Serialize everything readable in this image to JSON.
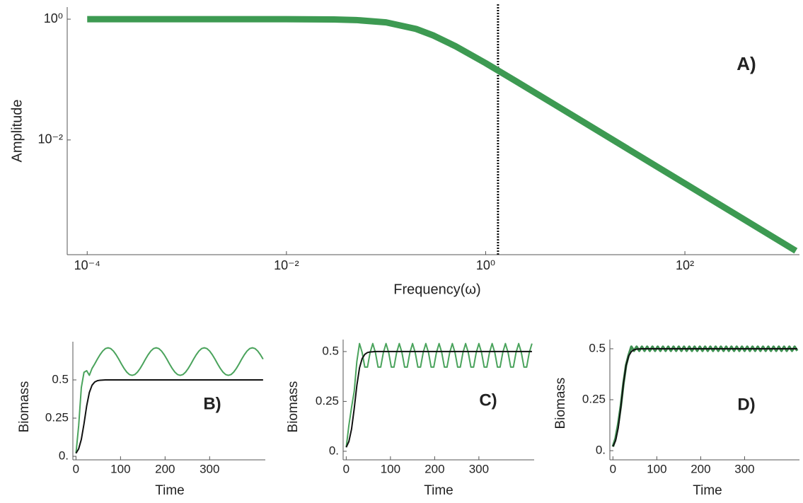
{
  "chart_data": [
    {
      "type": "line",
      "xlabel": "Frequency(ω)",
      "ylabel": "Amplitude",
      "annotation": "A)",
      "log_x": true,
      "log_y": true,
      "grid": false,
      "xlim": [
        6.3e-05,
        1413
      ],
      "ylim": [
        0.000126,
        1.585
      ],
      "xticks": [
        {
          "value": 0.0001,
          "label": "10⁻⁴"
        },
        {
          "value": 0.01,
          "label": "10⁻²"
        },
        {
          "value": 1,
          "label": "10⁰"
        },
        {
          "value": 100,
          "label": "10²"
        }
      ],
      "yticks": [
        {
          "value": 1,
          "label": "10⁰"
        },
        {
          "value": 0.01,
          "label": "10⁻²"
        }
      ],
      "vline": 1.33,
      "x": [
        0.0001,
        0.001,
        0.01,
        0.03,
        0.05,
        0.1,
        0.2,
        0.3,
        0.5,
        1,
        2,
        5,
        10,
        100,
        1300
      ],
      "series": [
        {
          "color": "#3d9a52",
          "values": [
            1,
            1,
            0.9986,
            0.988,
            0.967,
            0.885,
            0.689,
            0.535,
            0.355,
            0.187,
            0.0946,
            0.038,
            0.019,
            0.0019,
            0.000146
          ]
        }
      ]
    },
    {
      "type": "line",
      "xlabel": "Time",
      "ylabel": "Biomass",
      "annotation": "B)",
      "grid": false,
      "xlim": [
        -7,
        425
      ],
      "ylim": [
        -0.023,
        0.75
      ],
      "xticks": [
        0,
        100,
        200,
        300
      ],
      "yticks": [
        {
          "value": 0,
          "label": "0."
        },
        0.25,
        0.5
      ],
      "x": [
        0,
        6,
        12,
        18,
        24,
        30,
        36,
        42,
        48,
        54,
        60,
        66,
        72,
        78,
        84,
        90,
        96,
        102,
        108,
        114,
        120,
        126,
        132,
        138,
        144,
        150,
        156,
        162,
        168,
        174,
        180,
        186,
        192,
        198,
        204,
        210,
        216,
        222,
        228,
        234,
        240,
        246,
        252,
        258,
        264,
        270,
        276,
        282,
        288,
        294,
        300,
        306,
        312,
        318,
        324,
        330,
        336,
        342,
        348,
        354,
        360,
        366,
        372,
        378,
        384,
        390,
        396,
        402,
        408,
        414,
        420
      ],
      "series": [
        {
          "color": "#4aa35c",
          "values": [
            0.02,
            0.2,
            0.45,
            0.55,
            0.56,
            0.53,
            0.575,
            0.604,
            0.636,
            0.665,
            0.689,
            0.705,
            0.71,
            0.705,
            0.689,
            0.665,
            0.636,
            0.604,
            0.575,
            0.551,
            0.535,
            0.53,
            0.535,
            0.551,
            0.575,
            0.604,
            0.636,
            0.665,
            0.689,
            0.705,
            0.71,
            0.705,
            0.689,
            0.665,
            0.636,
            0.604,
            0.575,
            0.551,
            0.535,
            0.53,
            0.535,
            0.551,
            0.575,
            0.604,
            0.636,
            0.665,
            0.689,
            0.705,
            0.71,
            0.705,
            0.689,
            0.665,
            0.636,
            0.604,
            0.575,
            0.551,
            0.535,
            0.53,
            0.535,
            0.551,
            0.575,
            0.604,
            0.636,
            0.665,
            0.689,
            0.705,
            0.71,
            0.705,
            0.689,
            0.665,
            0.636
          ]
        },
        {
          "color": "#111111",
          "values": [
            0.02,
            0.049,
            0.111,
            0.213,
            0.33,
            0.418,
            0.465,
            0.486,
            0.495,
            0.498,
            0.499,
            0.5,
            0.5,
            0.5,
            0.5,
            0.5,
            0.5,
            0.5,
            0.5,
            0.5,
            0.5,
            0.5,
            0.5,
            0.5,
            0.5,
            0.5,
            0.5,
            0.5,
            0.5,
            0.5,
            0.5,
            0.5,
            0.5,
            0.5,
            0.5,
            0.5,
            0.5,
            0.5,
            0.5,
            0.5,
            0.5,
            0.5,
            0.5,
            0.5,
            0.5,
            0.5,
            0.5,
            0.5,
            0.5,
            0.5,
            0.5,
            0.5,
            0.5,
            0.5,
            0.5,
            0.5,
            0.5,
            0.5,
            0.5,
            0.5,
            0.5,
            0.5,
            0.5,
            0.5,
            0.5,
            0.5,
            0.5,
            0.5,
            0.5,
            0.5,
            0.5
          ]
        }
      ]
    },
    {
      "type": "line",
      "xlabel": "Time",
      "ylabel": "Biomass",
      "annotation": "C)",
      "grid": false,
      "xlim": [
        -7,
        425
      ],
      "ylim": [
        -0.043,
        0.56
      ],
      "xticks": [
        0,
        100,
        200,
        300
      ],
      "yticks": [
        {
          "value": 0,
          "label": "0."
        },
        0.25,
        0.5
      ],
      "x": [
        0,
        6,
        12,
        18,
        24,
        30,
        36,
        42,
        48,
        54,
        60,
        66,
        72,
        78,
        84,
        90,
        96,
        102,
        108,
        114,
        120,
        126,
        132,
        138,
        144,
        150,
        156,
        162,
        168,
        174,
        180,
        186,
        192,
        198,
        204,
        210,
        216,
        222,
        228,
        234,
        240,
        246,
        252,
        258,
        264,
        270,
        276,
        282,
        288,
        294,
        300,
        306,
        312,
        318,
        324,
        330,
        336,
        342,
        348,
        354,
        360,
        366,
        372,
        378,
        384,
        390,
        396,
        402,
        408,
        414,
        420
      ],
      "series": [
        {
          "color": "#4aa35c",
          "values": [
            0.02,
            0.13,
            0.22,
            0.3,
            0.45,
            0.54,
            0.495,
            0.422,
            0.422,
            0.495,
            0.54,
            0.495,
            0.422,
            0.422,
            0.495,
            0.54,
            0.495,
            0.422,
            0.422,
            0.495,
            0.54,
            0.495,
            0.422,
            0.422,
            0.495,
            0.54,
            0.495,
            0.422,
            0.422,
            0.495,
            0.54,
            0.495,
            0.422,
            0.422,
            0.495,
            0.54,
            0.495,
            0.422,
            0.422,
            0.495,
            0.54,
            0.495,
            0.422,
            0.422,
            0.495,
            0.54,
            0.495,
            0.422,
            0.422,
            0.495,
            0.54,
            0.495,
            0.422,
            0.422,
            0.495,
            0.54,
            0.495,
            0.422,
            0.422,
            0.495,
            0.54,
            0.495,
            0.422,
            0.422,
            0.495,
            0.54,
            0.495,
            0.422,
            0.422,
            0.495,
            0.54
          ]
        },
        {
          "color": "#111111",
          "values": [
            0.02,
            0.049,
            0.111,
            0.213,
            0.33,
            0.418,
            0.465,
            0.486,
            0.495,
            0.498,
            0.499,
            0.5,
            0.5,
            0.5,
            0.5,
            0.5,
            0.5,
            0.5,
            0.5,
            0.5,
            0.5,
            0.5,
            0.5,
            0.5,
            0.5,
            0.5,
            0.5,
            0.5,
            0.5,
            0.5,
            0.5,
            0.5,
            0.5,
            0.5,
            0.5,
            0.5,
            0.5,
            0.5,
            0.5,
            0.5,
            0.5,
            0.5,
            0.5,
            0.5,
            0.5,
            0.5,
            0.5,
            0.5,
            0.5,
            0.5,
            0.5,
            0.5,
            0.5,
            0.5,
            0.5,
            0.5,
            0.5,
            0.5,
            0.5,
            0.5,
            0.5,
            0.5,
            0.5,
            0.5,
            0.5,
            0.5,
            0.5,
            0.5,
            0.5,
            0.5,
            0.5
          ]
        }
      ]
    },
    {
      "type": "line",
      "xlabel": "Time",
      "ylabel": "Biomass",
      "annotation": "D)",
      "grid": false,
      "xlim": [
        -7,
        425
      ],
      "ylim": [
        -0.045,
        0.545
      ],
      "xticks": [
        0,
        100,
        200,
        300
      ],
      "yticks": [
        {
          "value": 0,
          "label": "0."
        },
        0.25,
        0.5
      ],
      "x": [
        0,
        6,
        12,
        18,
        24,
        30,
        36,
        42,
        48,
        54,
        60,
        66,
        72,
        78,
        84,
        90,
        96,
        102,
        108,
        114,
        120,
        126,
        132,
        138,
        144,
        150,
        156,
        162,
        168,
        174,
        180,
        186,
        192,
        198,
        204,
        210,
        216,
        222,
        228,
        234,
        240,
        246,
        252,
        258,
        264,
        270,
        276,
        282,
        288,
        294,
        300,
        306,
        312,
        318,
        324,
        330,
        336,
        342,
        348,
        354,
        360,
        366,
        372,
        378,
        384,
        390,
        396,
        402,
        408,
        414,
        420
      ],
      "series": [
        {
          "color": "#3f8f52",
          "values": [
            0.02,
            0.06,
            0.13,
            0.22,
            0.33,
            0.42,
            0.47,
            0.51,
            0.49,
            0.51,
            0.49,
            0.51,
            0.49,
            0.51,
            0.49,
            0.51,
            0.49,
            0.51,
            0.49,
            0.51,
            0.49,
            0.51,
            0.49,
            0.51,
            0.49,
            0.51,
            0.49,
            0.51,
            0.49,
            0.51,
            0.49,
            0.51,
            0.49,
            0.51,
            0.49,
            0.51,
            0.49,
            0.51,
            0.49,
            0.51,
            0.49,
            0.51,
            0.49,
            0.51,
            0.49,
            0.51,
            0.49,
            0.51,
            0.49,
            0.51,
            0.49,
            0.51,
            0.49,
            0.51,
            0.49,
            0.51,
            0.49,
            0.51,
            0.49,
            0.51,
            0.49,
            0.51,
            0.49,
            0.51,
            0.49,
            0.51,
            0.49,
            0.51,
            0.49,
            0.51,
            0.49
          ]
        },
        {
          "color": "#111111",
          "values": [
            0.02,
            0.049,
            0.111,
            0.213,
            0.33,
            0.418,
            0.465,
            0.486,
            0.495,
            0.498,
            0.499,
            0.5,
            0.5,
            0.5,
            0.5,
            0.5,
            0.5,
            0.5,
            0.5,
            0.5,
            0.5,
            0.5,
            0.5,
            0.5,
            0.5,
            0.5,
            0.5,
            0.5,
            0.5,
            0.5,
            0.5,
            0.5,
            0.5,
            0.5,
            0.5,
            0.5,
            0.5,
            0.5,
            0.5,
            0.5,
            0.5,
            0.5,
            0.5,
            0.5,
            0.5,
            0.5,
            0.5,
            0.5,
            0.5,
            0.5,
            0.5,
            0.5,
            0.5,
            0.5,
            0.5,
            0.5,
            0.5,
            0.5,
            0.5,
            0.5,
            0.5,
            0.5,
            0.5,
            0.5,
            0.5,
            0.5,
            0.5,
            0.5,
            0.5,
            0.5,
            0.5
          ]
        }
      ]
    }
  ]
}
